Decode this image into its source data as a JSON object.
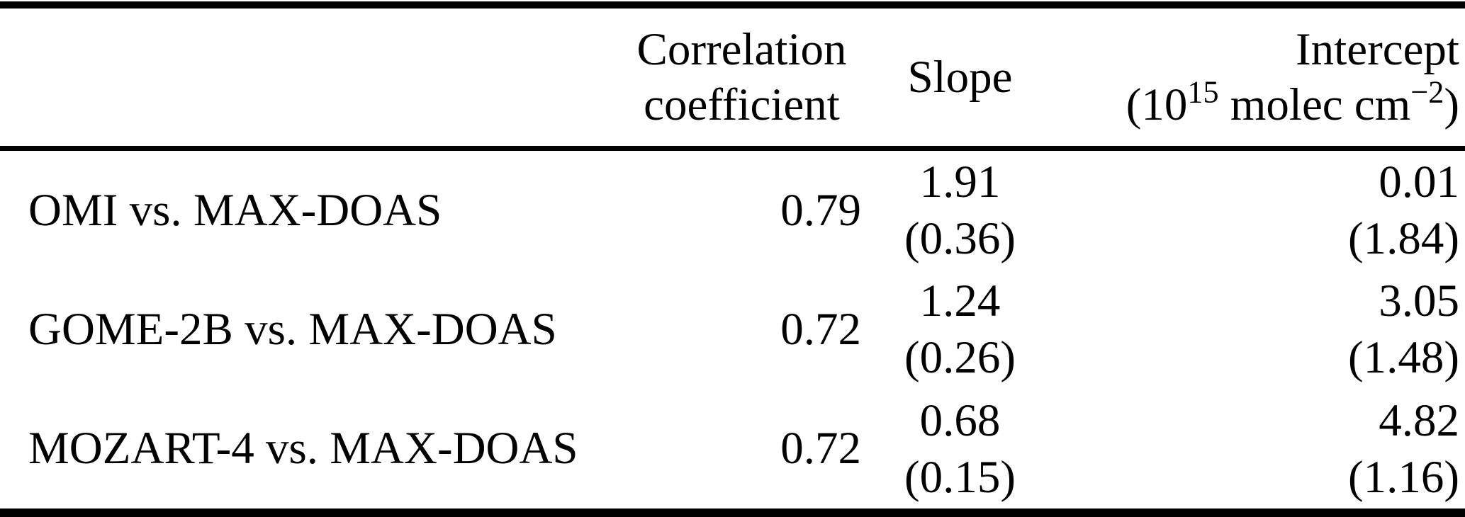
{
  "colors": {
    "background": "#ffffff",
    "text": "#000000",
    "rule": "#000000"
  },
  "table": {
    "header": {
      "correlation_line1": "Correlation",
      "correlation_line2": "coefficient",
      "slope": "Slope",
      "intercept": "Intercept",
      "intercept_unit": {
        "prefix": "(10",
        "exp": "15",
        "mid": " molec cm",
        "exp2": "−2",
        "suffix": ")"
      }
    },
    "rows": [
      {
        "label": "OMI vs. MAX-DOAS",
        "correlation": "0.79",
        "slope": "1.91",
        "slope_sd": "(0.36)",
        "intercept": "0.01",
        "intercept_sd": "(1.84)"
      },
      {
        "label": "GOME-2B vs. MAX-DOAS",
        "correlation": "0.72",
        "slope": "1.24",
        "slope_sd": "(0.26)",
        "intercept": "3.05",
        "intercept_sd": "(1.48)"
      },
      {
        "label": "MOZART-4 vs. MAX-DOAS",
        "correlation": "0.72",
        "slope": "0.68",
        "slope_sd": "(0.15)",
        "intercept": "4.82",
        "intercept_sd": "(1.16)"
      }
    ]
  }
}
